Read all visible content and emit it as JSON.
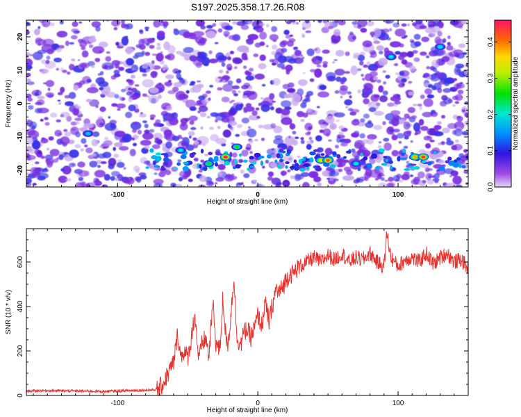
{
  "title": "S197.2025.358.17.26.R08",
  "colors": {
    "spectrogram_background": "#ffffff",
    "speckle_purple": "#7b2fe0",
    "speckle_blue": "#3a33e8",
    "speckle_light": "#c7a8ef",
    "snr_line": "#e8322e",
    "axis": "#000000"
  },
  "chart_data": [
    {
      "type": "heatmap",
      "name": "spectrogram",
      "title": "S197.2025.358.17.26.R08",
      "xlabel": "Height of straight line (km)",
      "ylabel": "Frequency (Hz)",
      "xlim": [
        -165,
        150
      ],
      "ylim": [
        -25,
        25
      ],
      "xticks": [
        -100,
        0,
        100
      ],
      "yticks": [
        -20,
        -10,
        0,
        10,
        20
      ],
      "xtick_labels": [
        "-100",
        "0",
        "100"
      ],
      "ytick_labels": [
        "-20",
        "-10",
        "0",
        "10",
        "20"
      ],
      "signal_band_hz": -17,
      "signal_segment_km": [
        -80,
        150
      ],
      "peaks": [
        {
          "x": -23,
          "y": -16,
          "amplitude": 0.45
        },
        {
          "x": -35,
          "y": -18,
          "amplitude": 0.25
        },
        {
          "x": -55,
          "y": -14,
          "amplitude": 0.2
        },
        {
          "x": 45,
          "y": -17,
          "amplitude": 0.35
        },
        {
          "x": 50,
          "y": -17,
          "amplitude": 0.42
        },
        {
          "x": 70,
          "y": -18,
          "amplitude": 0.2
        },
        {
          "x": 112,
          "y": -16,
          "amplitude": 0.38
        },
        {
          "x": 118,
          "y": -16,
          "amplitude": 0.44
        },
        {
          "x": -121,
          "y": -9,
          "amplitude": 0.18
        },
        {
          "x": -15,
          "y": -13,
          "amplitude": 0.25
        },
        {
          "x": 95,
          "y": 14,
          "amplitude": 0.2
        },
        {
          "x": 130,
          "y": 17,
          "amplitude": 0.2
        }
      ],
      "colorbar": {
        "label": "Normalized spectral amplitude",
        "range": [
          0,
          0.46
        ],
        "ticks": [
          0.0,
          0.1,
          0.2,
          0.3,
          0.4
        ],
        "tick_labels": [
          "0.0",
          "0.1",
          "0.2",
          "0.3",
          "0.4"
        ]
      }
    },
    {
      "type": "line",
      "name": "snr",
      "xlabel": "Height of straight line (km)",
      "ylabel": "SNR (10 * v/v)",
      "xlim": [
        -165,
        150
      ],
      "ylim": [
        0,
        750
      ],
      "xticks": [
        -100,
        0,
        100
      ],
      "yticks": [
        0,
        200,
        400,
        600
      ],
      "xtick_labels": [
        "-100",
        "0",
        "100"
      ],
      "ytick_labels": [
        "0",
        "200",
        "400",
        "600"
      ],
      "series": [
        {
          "name": "SNR",
          "x": [
            -165,
            -150,
            -130,
            -110,
            -90,
            -75,
            -70,
            -67,
            -63,
            -60,
            -57,
            -55,
            -53,
            -50,
            -48,
            -45,
            -42,
            -40,
            -37,
            -35,
            -32,
            -30,
            -27,
            -25,
            -22,
            -20,
            -17,
            -15,
            -12,
            -10,
            -8,
            -5,
            -2,
            0,
            3,
            5,
            8,
            10,
            13,
            15,
            18,
            20,
            23,
            25,
            28,
            30,
            35,
            40,
            45,
            50,
            55,
            60,
            65,
            70,
            75,
            80,
            85,
            90,
            92,
            95,
            100,
            105,
            110,
            115,
            120,
            125,
            130,
            135,
            140,
            145,
            150
          ],
          "values": [
            20,
            22,
            20,
            18,
            22,
            25,
            30,
            60,
            110,
            150,
            280,
            170,
            200,
            170,
            230,
            370,
            150,
            230,
            260,
            170,
            420,
            240,
            200,
            440,
            210,
            300,
            540,
            260,
            230,
            280,
            300,
            260,
            310,
            360,
            310,
            420,
            330,
            390,
            480,
            460,
            490,
            520,
            550,
            545,
            570,
            580,
            600,
            620,
            600,
            630,
            610,
            640,
            600,
            620,
            610,
            640,
            600,
            580,
            730,
            620,
            580,
            610,
            620,
            600,
            640,
            590,
            620,
            640,
            600,
            610,
            570
          ]
        }
      ]
    }
  ]
}
